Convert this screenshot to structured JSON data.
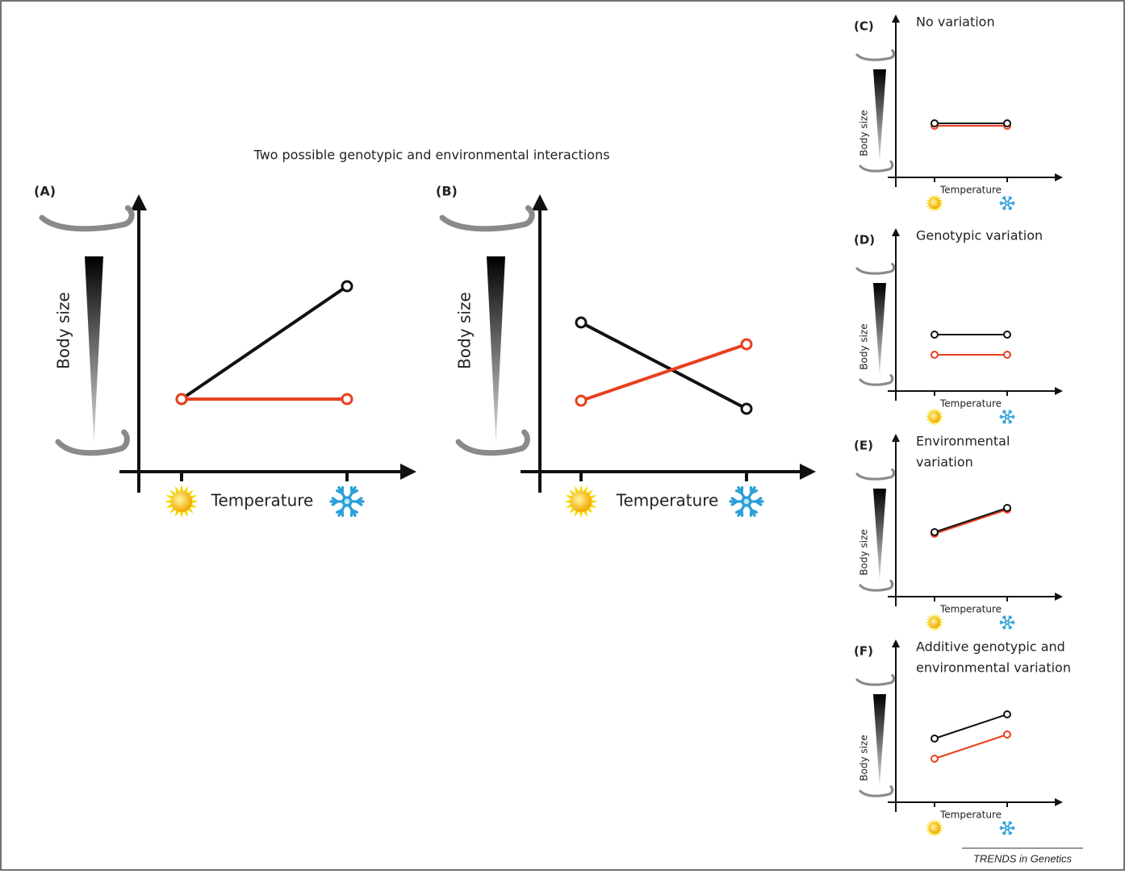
{
  "title": "Two possible genotypic and environmental interactions",
  "panels": [
    {
      "label": "(A)",
      "y_label": "Body size",
      "x_label": "Temperature"
    },
    {
      "label": "(B)",
      "y_label": "Body size",
      "x_label": "Temperature"
    },
    {
      "label": "(C)",
      "heading": [
        "No variation"
      ],
      "y_label": "Body size",
      "x_label": "Temperature"
    },
    {
      "label": "(D)",
      "heading": [
        "Genotypic variation"
      ],
      "y_label": "Body size",
      "x_label": "Temperature"
    },
    {
      "label": "(E)",
      "heading": [
        "Environmental",
        "variation"
      ],
      "y_label": "Body size",
      "x_label": "Temperature"
    },
    {
      "label": "(F)",
      "heading": [
        "Additive genotypic and",
        "environmental variation"
      ],
      "y_label": "Body size",
      "x_label": "Temperature"
    }
  ],
  "footer": "TRENDS in Genetics"
}
